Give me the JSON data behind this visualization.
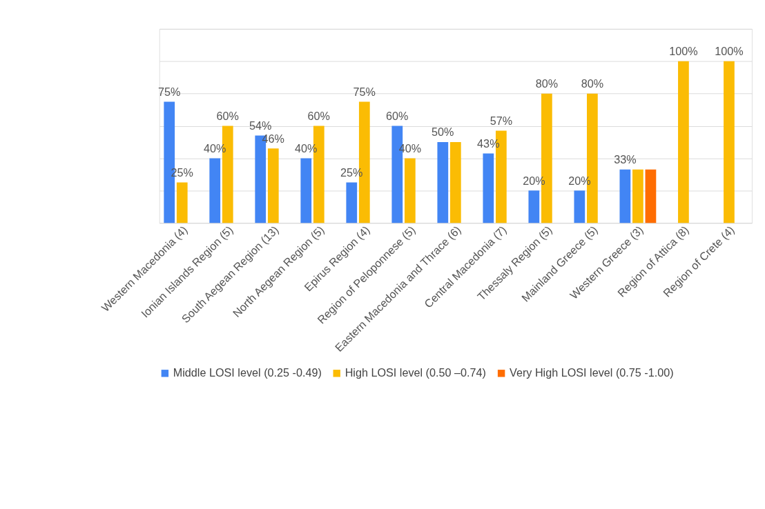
{
  "chart_data": {
    "type": "bar",
    "categories": [
      "Western Macedonia (4)",
      "Ionian Islands Region (5)",
      "South Aegean Region (13)",
      "North Aegean Region (5)",
      "Epirus Region (4)",
      "Region of Peloponnese (5)",
      "Eastern Macedonia and Thrace (6)",
      "Central Macedonia (7)",
      "Thessaly Region (5)",
      "Mainland Greece (5)",
      "Western Greece (3)",
      "Region of Attica (8)",
      "Region of Crete (4)"
    ],
    "series": [
      {
        "name": "Middle LOSI level (0.25 -0.49)",
        "color": "#4285f4",
        "values": [
          75,
          40,
          54,
          40,
          25,
          60,
          50,
          43,
          20,
          20,
          33,
          null,
          null
        ],
        "value_labels": [
          "75%",
          "40%",
          "54%",
          "40%",
          "25%",
          "60%",
          "50%",
          "43%",
          "20%",
          "20%",
          "33%",
          null,
          null
        ]
      },
      {
        "name": "High LOSI level (0.50 –0.74)",
        "color": "#fbbc04",
        "values": [
          25,
          60,
          46,
          60,
          75,
          40,
          50,
          57,
          80,
          80,
          33,
          100,
          100
        ],
        "value_labels": [
          "25%",
          "60%",
          "46%",
          "60%",
          "75%",
          "40%",
          null,
          "57%",
          "80%",
          "80%",
          null,
          "100%",
          "100%"
        ]
      },
      {
        "name": "Very High LOSI level (0.75 -1.00)",
        "color": "#ff6d01",
        "values": [
          null,
          null,
          null,
          null,
          null,
          null,
          null,
          null,
          null,
          null,
          33,
          null,
          null
        ],
        "value_labels": [
          null,
          null,
          null,
          null,
          null,
          null,
          null,
          null,
          null,
          null,
          null,
          null,
          null
        ]
      }
    ],
    "ylim": [
      0,
      120
    ],
    "yticks": [
      {
        "value": 0,
        "label": null
      },
      {
        "value": 20,
        "label": null
      },
      {
        "value": 40,
        "label": null
      },
      {
        "value": 60,
        "label": null
      },
      {
        "value": 80,
        "label": null
      },
      {
        "value": 100,
        "label": null
      },
      {
        "value": 120,
        "label": null
      }
    ],
    "tick_labels": "x",
    "grid": "y",
    "legend": "bottom"
  }
}
